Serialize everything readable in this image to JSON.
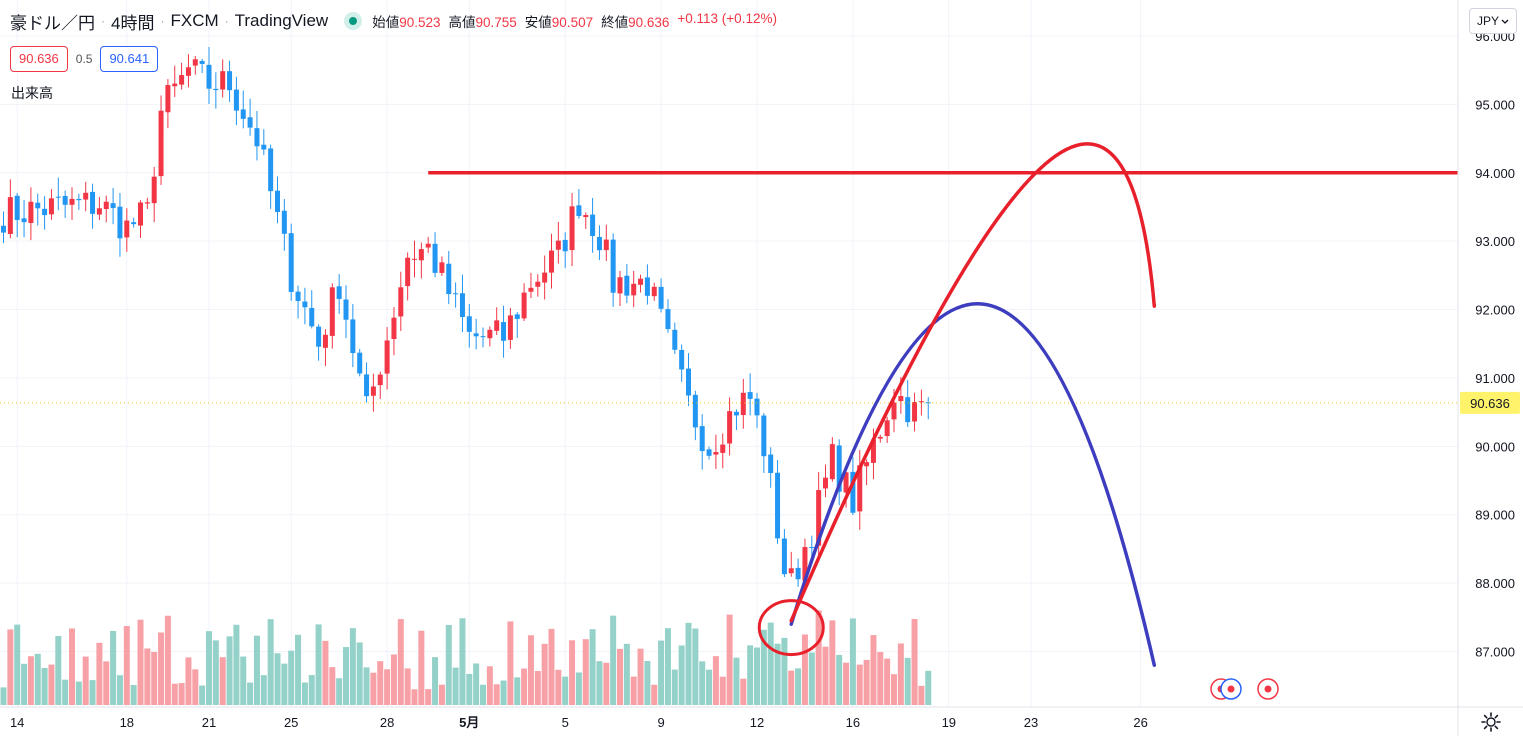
{
  "header": {
    "symbol": "豪ドル／円",
    "interval": "4時間",
    "exchange": "FXCM",
    "source": "TradingView",
    "ohlc": [
      {
        "label": "始値",
        "value": "90.523"
      },
      {
        "label": "高値",
        "value": "90.755"
      },
      {
        "label": "安値",
        "value": "90.507"
      },
      {
        "label": "終値",
        "value": "90.636"
      }
    ],
    "change": "+0.113 (+0.12%)"
  },
  "quote": {
    "sell": "90.636",
    "spread": "0.5",
    "buy": "90.641"
  },
  "volume_label": "出来高",
  "currency_button": "JPY",
  "colors": {
    "up": "#f23645",
    "down": "#2196f3",
    "vol_up": "#f7a1a7",
    "vol_down": "#94d2c9",
    "drawing_red": "#e8202b",
    "drawing_blue": "#3d3dbf",
    "price_tag": "#fff36b"
  },
  "chart_data": {
    "type": "candlestick",
    "title": "豪ドル／円 · 4時間 · FXCM",
    "y_ticks": [
      "96.000",
      "95.000",
      "94.000",
      "93.000",
      "92.000",
      "91.000",
      "90.000",
      "89.000",
      "88.000",
      "87.000"
    ],
    "ylim": [
      86.4,
      96.1
    ],
    "x_ticks": [
      {
        "label": "14",
        "bar": 2
      },
      {
        "label": "18",
        "bar": 18
      },
      {
        "label": "21",
        "bar": 30
      },
      {
        "label": "25",
        "bar": 42
      },
      {
        "label": "28",
        "bar": 56
      },
      {
        "label": "5月",
        "bar": 68
      },
      {
        "label": "5",
        "bar": 82
      },
      {
        "label": "9",
        "bar": 96
      },
      {
        "label": "12",
        "bar": 110
      },
      {
        "label": "16",
        "bar": 124
      },
      {
        "label": "19",
        "bar": 138
      },
      {
        "label": "23",
        "bar": 150
      },
      {
        "label": "26",
        "bar": 166
      }
    ],
    "last_price": "90.636",
    "last_value": 90.636,
    "anchors": [
      {
        "bar": 0,
        "price": 93.4
      },
      {
        "bar": 8,
        "price": 93.5
      },
      {
        "bar": 14,
        "price": 93.55
      },
      {
        "bar": 18,
        "price": 93.2
      },
      {
        "bar": 21,
        "price": 93.4
      },
      {
        "bar": 23,
        "price": 94.9
      },
      {
        "bar": 27,
        "price": 95.5
      },
      {
        "bar": 30,
        "price": 95.3
      },
      {
        "bar": 33,
        "price": 95.3
      },
      {
        "bar": 37,
        "price": 94.5
      },
      {
        "bar": 42,
        "price": 92.5
      },
      {
        "bar": 46,
        "price": 91.5
      },
      {
        "bar": 49,
        "price": 92.4
      },
      {
        "bar": 53,
        "price": 90.5
      },
      {
        "bar": 56,
        "price": 91.6
      },
      {
        "bar": 59,
        "price": 92.8
      },
      {
        "bar": 62,
        "price": 92.9
      },
      {
        "bar": 68,
        "price": 91.6
      },
      {
        "bar": 73,
        "price": 91.6
      },
      {
        "bar": 77,
        "price": 92.4
      },
      {
        "bar": 81,
        "price": 92.8
      },
      {
        "bar": 84,
        "price": 93.6
      },
      {
        "bar": 87,
        "price": 93.1
      },
      {
        "bar": 89,
        "price": 92.4
      },
      {
        "bar": 94,
        "price": 92.4
      },
      {
        "bar": 97,
        "price": 91.5
      },
      {
        "bar": 100,
        "price": 90.6
      },
      {
        "bar": 103,
        "price": 90.0
      },
      {
        "bar": 107,
        "price": 90.6
      },
      {
        "bar": 109,
        "price": 90.7
      },
      {
        "bar": 111,
        "price": 90.0
      },
      {
        "bar": 114,
        "price": 88.2
      },
      {
        "bar": 115,
        "price": 88.0
      },
      {
        "bar": 118,
        "price": 88.8
      },
      {
        "bar": 121,
        "price": 89.8
      },
      {
        "bar": 124,
        "price": 89.2
      },
      {
        "bar": 127,
        "price": 90.0
      },
      {
        "bar": 130,
        "price": 90.8
      },
      {
        "bar": 133,
        "price": 90.5
      },
      {
        "bar": 135,
        "price": 90.6
      }
    ],
    "n_bars": 136,
    "horizontal_line": {
      "price": 94.0,
      "from_bar": 62,
      "color": "red"
    },
    "red_curve": [
      {
        "bar": 115,
        "price": 87.45
      },
      {
        "bar": 152,
        "price": 94.12
      },
      {
        "bar": 168,
        "price": 92.05
      }
    ],
    "blue_curve": [
      {
        "bar": 115,
        "price": 87.4
      },
      {
        "bar": 143,
        "price": 92.08
      },
      {
        "bar": 168,
        "price": 86.8
      }
    ],
    "circle_marker": {
      "bar": 115,
      "price": 87.35
    }
  }
}
